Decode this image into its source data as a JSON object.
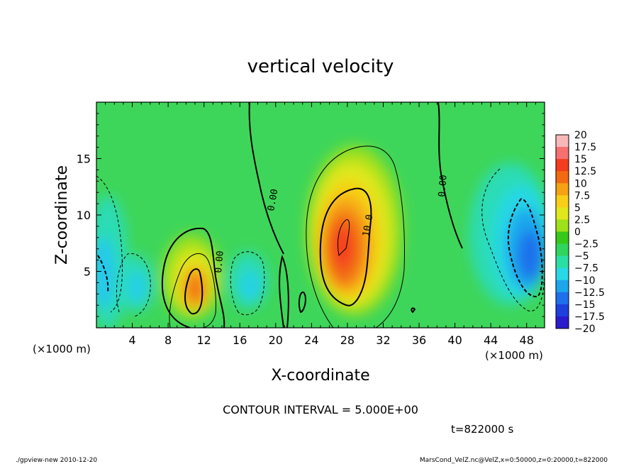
{
  "chart_data": {
    "type": "heatmap",
    "title": "vertical velocity",
    "xlabel": "X-coordinate",
    "ylabel": "Z-coordinate",
    "x_unit_left": "(×1000 m)",
    "x_unit_right": "(×1000 m)",
    "xlim": [
      0,
      50
    ],
    "ylim": [
      0,
      20
    ],
    "x_ticks": [
      "4",
      "8",
      "12",
      "16",
      "20",
      "24",
      "28",
      "32",
      "36",
      "40",
      "44",
      "48"
    ],
    "x_tick_values": [
      4,
      8,
      12,
      16,
      20,
      24,
      28,
      32,
      36,
      40,
      44,
      48
    ],
    "y_ticks": [
      "5",
      "10",
      "15"
    ],
    "y_tick_values": [
      5,
      10,
      15
    ],
    "colorbar": {
      "levels": [
        "20",
        "17.5",
        "15",
        "12.5",
        "10",
        "7.5",
        "5",
        "2.5",
        "0",
        "−2.5",
        "−5",
        "−7.5",
        "−10",
        "−12.5",
        "−15",
        "−17.5",
        "−20"
      ],
      "colors": [
        "#f9b8b8",
        "#f77070",
        "#f43c1e",
        "#f26a12",
        "#f5a214",
        "#f7cf18",
        "#dfe81a",
        "#9ee01a",
        "#36c81a",
        "#2fd55c",
        "#2bdfa4",
        "#28d8e6",
        "#1ca6ec",
        "#1e70ec",
        "#1e40dc",
        "#2a1ccc",
        "#6a18c0"
      ]
    },
    "features": [
      {
        "sign": "positive",
        "x": 27.5,
        "z": 7.5,
        "peak": 12.5
      },
      {
        "sign": "positive",
        "x": 11,
        "z": 4,
        "peak": 10
      },
      {
        "sign": "negative",
        "x": 47,
        "z": 7,
        "peak": -11
      },
      {
        "sign": "negative",
        "x": 1,
        "z": 5,
        "peak": -8
      },
      {
        "sign": "negative",
        "x": 4.5,
        "z": 3.5,
        "peak": -5
      },
      {
        "sign": "negative",
        "x": 17.5,
        "z": 4,
        "peak": -6
      }
    ],
    "contour_labels": [
      "0.00",
      "0.00",
      "0.00",
      "10.0"
    ]
  },
  "contour_interval": "CONTOUR INTERVAL = 5.000E+00",
  "time_label": "t=822000 s",
  "footer_left": "./gpview-new  2010-12-20",
  "footer_right": "MarsCond_VelZ.nc@VelZ,x=0:50000,z=0:20000,t=822000"
}
